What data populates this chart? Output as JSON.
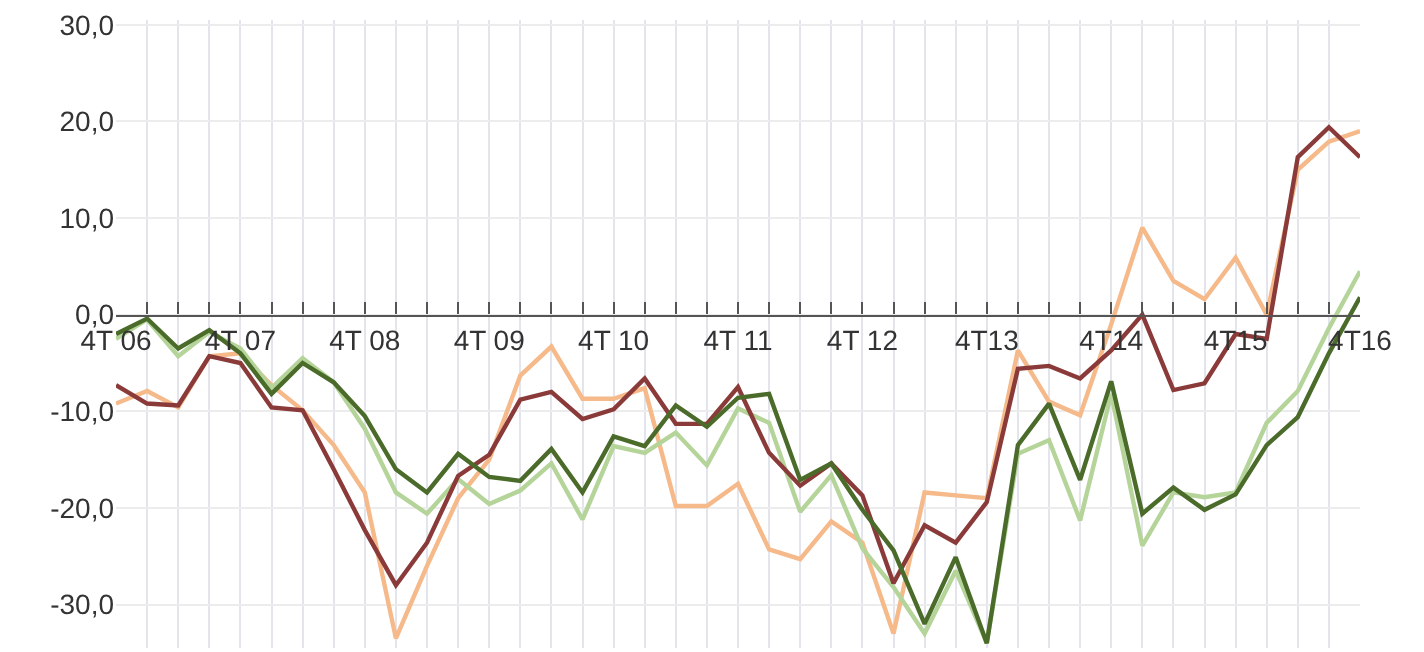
{
  "chart_data": {
    "type": "line",
    "categories": [
      "4T 06",
      null,
      null,
      null,
      "4T 07",
      null,
      null,
      null,
      "4T 08",
      null,
      null,
      null,
      "4T 09",
      null,
      null,
      null,
      "4T 10",
      null,
      null,
      null,
      "4T 11",
      null,
      null,
      null,
      "4T 12",
      null,
      null,
      null,
      "4T13",
      null,
      null,
      null,
      "4T14",
      null,
      null,
      null,
      "4T15",
      null,
      null,
      null,
      "4T16"
    ],
    "series": [
      {
        "color": "#f5b98a",
        "values": [
          -9.2,
          -7.9,
          -9.6,
          -4.3,
          -4,
          -7.3,
          -9.9,
          -13.5,
          -18.4,
          -33.5,
          -26,
          -19,
          -15,
          -6.3,
          -3.3,
          -8.7,
          -8.7,
          -7.6,
          -19.8,
          -19.8,
          -17.5,
          -24.3,
          -25.3,
          -21.4,
          -23.6,
          -33,
          -18.4,
          -18.7,
          -19,
          -3.7,
          -9,
          -10.4,
          -1,
          9,
          3.5,
          1.6,
          5.9,
          0,
          15,
          17.9,
          19
        ]
      },
      {
        "color": "#b5d49a",
        "values": [
          -2.5,
          -0.5,
          -4.3,
          -1.8,
          -3.5,
          -7.6,
          -4.5,
          -7,
          -11.8,
          -18.4,
          -20.6,
          -17,
          -19.6,
          -18.2,
          -15.4,
          -21.2,
          -13.6,
          -14.3,
          -12.2,
          -15.6,
          -9.7,
          -11.2,
          -20.4,
          -16.6,
          -24.2,
          -28.2,
          -33,
          -26.5,
          -34,
          -14.4,
          -13,
          -21.3,
          -8.2,
          -23.9,
          -18.4,
          -18.9,
          -18.4,
          -11.2,
          -7.9,
          -1.4,
          4.5
        ]
      },
      {
        "color": "#8b3a3a",
        "values": [
          -7.3,
          -9.2,
          -9.4,
          -4.3,
          -5,
          -9.6,
          -9.9,
          -16,
          -22.3,
          -28,
          -23.6,
          -16.7,
          -14.5,
          -8.8,
          -8,
          -10.8,
          -9.8,
          -6.6,
          -11.3,
          -11.3,
          -7.5,
          -14.3,
          -17.7,
          -15.4,
          -18.7,
          -27.8,
          -21.8,
          -23.6,
          -19.4,
          -5.6,
          -5.3,
          -6.6,
          -3.7,
          0,
          -7.8,
          -7.1,
          -2,
          -2.5,
          16.3,
          19.4,
          16.3
        ]
      },
      {
        "color": "#4a6b2a",
        "values": [
          -2,
          -0.4,
          -3.5,
          -1.6,
          -4,
          -8.2,
          -5,
          -7,
          -10.5,
          -16,
          -18.4,
          -14.4,
          -16.8,
          -17.2,
          -13.9,
          -18.4,
          -12.6,
          -13.6,
          -9.4,
          -11.6,
          -8.6,
          -8.2,
          -17.1,
          -15.4,
          -20.2,
          -24.4,
          -32,
          -25.1,
          -34,
          -13.5,
          -9.2,
          -17.1,
          -6.9,
          -20.6,
          -17.9,
          -20.2,
          -18.6,
          -13.5,
          -10.6,
          -4,
          1.8
        ]
      }
    ],
    "ylim": [
      -34.5,
      30.5
    ],
    "yticks": [
      {
        "value": -30,
        "label": "-30,0"
      },
      {
        "value": -20,
        "label": "-20,0"
      },
      {
        "value": -10,
        "label": "-10,0"
      },
      {
        "value": 0,
        "label": "0,0"
      },
      {
        "value": 10,
        "label": "10,0"
      },
      {
        "value": 20,
        "label": "20,0"
      },
      {
        "value": 30,
        "label": "30,0"
      }
    ],
    "grid": true,
    "marker": "none",
    "line_style": "solid"
  }
}
